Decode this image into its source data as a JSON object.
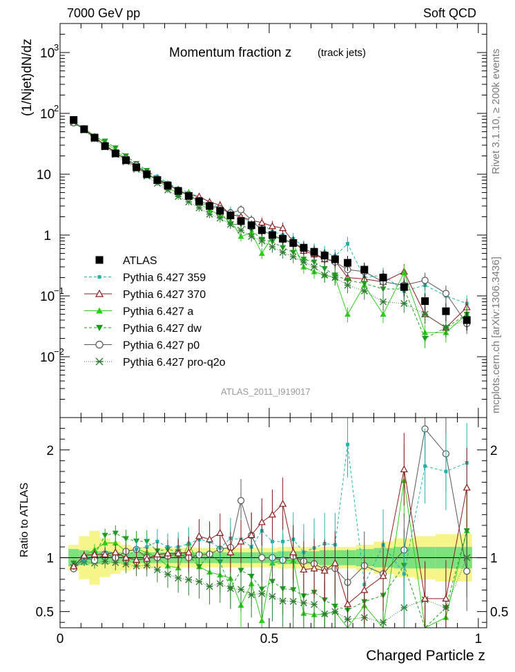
{
  "header": {
    "left": "7000 GeV pp",
    "right": "Soft QCD"
  },
  "side_labels": {
    "rivet": "Rivet 3.1.10, ≥ 200k events",
    "mcplots": "mcplots.cern.ch [arXiv:1306.3436]"
  },
  "plot_title": {
    "main": "Momentum fraction z",
    "sub": "(track jets)"
  },
  "analysis_id": "ATLAS_2011_I919017",
  "colors": {
    "atlas": "#000000",
    "p359": "#20b2aa",
    "p370": "#8b1a1a",
    "pa": "#2ecc1a",
    "pdw": "#1e9e1e",
    "pp0": "#555555",
    "pq2o": "#2e7d32",
    "band_inner": "#7fe07f",
    "band_outer": "#f5f58a"
  },
  "chart_data": [
    {
      "type": "scatter",
      "title": "Momentum fraction z (track jets)",
      "ylabel": "(1/Njet)dN/dz",
      "yscale": "log",
      "ylim": [
        0.001,
        3000
      ],
      "xlim": [
        0,
        1.02
      ],
      "yticks": [
        {
          "v": 1000,
          "label": "10",
          "exp": "3"
        },
        {
          "v": 100,
          "label": "10",
          "exp": "2"
        },
        {
          "v": 10,
          "label": "10",
          "exp": ""
        },
        {
          "v": 1,
          "label": "1",
          "exp": ""
        },
        {
          "v": 0.1,
          "label": "10",
          "exp": "−1"
        },
        {
          "v": 0.01,
          "label": "10",
          "exp": "−2"
        }
      ],
      "legend_position": "middle-left",
      "x": [
        0.0325,
        0.0575,
        0.0825,
        0.1075,
        0.1325,
        0.1575,
        0.1825,
        0.2075,
        0.2325,
        0.2575,
        0.2825,
        0.3075,
        0.3325,
        0.3575,
        0.3825,
        0.4075,
        0.4325,
        0.4575,
        0.4825,
        0.5075,
        0.5325,
        0.5575,
        0.5825,
        0.6075,
        0.6325,
        0.6575,
        0.6875,
        0.7275,
        0.7725,
        0.8225,
        0.8725,
        0.9225,
        0.9725
      ],
      "series": [
        {
          "name": "ATLAS",
          "key": "atlas",
          "marker": "square",
          "values": [
            78,
            55,
            40,
            29,
            22,
            17,
            13,
            10,
            8.0,
            6.5,
            5.3,
            4.4,
            3.6,
            3.0,
            2.5,
            2.1,
            1.7,
            1.45,
            1.2,
            1.0,
            0.87,
            0.74,
            0.62,
            0.53,
            0.46,
            0.4,
            0.35,
            0.27,
            0.2,
            0.14,
            0.082,
            0.056,
            0.04
          ]
        },
        {
          "name": "Pythia 6.427 359",
          "key": "p359",
          "marker": "small-square",
          "dash": "4,3",
          "values": [
            72,
            54,
            41,
            30,
            23,
            17,
            14,
            11,
            9.2,
            7.2,
            5.8,
            5.0,
            4.2,
            3.5,
            2.7,
            2.5,
            2.0,
            1.6,
            1.5,
            1.15,
            1.0,
            0.87,
            0.65,
            0.58,
            0.52,
            0.45,
            0.72,
            0.2,
            0.22,
            0.12,
            0.15,
            0.1,
            0.075
          ]
        },
        {
          "name": "Pythia 6.427 370",
          "key": "p370",
          "marker": "open-triangle",
          "values": [
            72,
            56,
            41,
            30,
            23,
            17,
            13,
            10,
            8.3,
            6.8,
            5.5,
            4.6,
            4.3,
            3.5,
            3.1,
            2.2,
            2.0,
            1.75,
            1.6,
            1.4,
            1.3,
            0.78,
            0.55,
            0.48,
            0.4,
            0.38,
            0.2,
            0.19,
            0.17,
            0.25,
            0.05,
            0.03,
            0.065
          ]
        },
        {
          "name": "Pythia 6.427 a",
          "key": "pa",
          "marker": "triangle",
          "values": [
            72,
            56,
            43,
            33,
            25,
            18,
            14,
            10.5,
            8.0,
            6.0,
            4.8,
            5.0,
            3.3,
            2.6,
            2.1,
            1.7,
            0.95,
            1.1,
            0.5,
            0.95,
            0.85,
            0.72,
            0.3,
            0.25,
            0.22,
            0.2,
            0.05,
            0.15,
            0.05,
            0.24,
            0.025,
            0.025,
            0.05
          ]
        },
        {
          "name": "Pythia 6.427 dw",
          "key": "pdw",
          "marker": "down-triangle",
          "dash": "4,3",
          "values": [
            74,
            53,
            41,
            35,
            27,
            20,
            15,
            11.5,
            8.5,
            7.0,
            5.6,
            4.5,
            3.3,
            3.1,
            2.4,
            1.5,
            1.5,
            1.2,
            0.85,
            0.78,
            0.62,
            0.52,
            0.4,
            0.36,
            0.28,
            0.22,
            0.18,
            0.16,
            0.13,
            0.13,
            0.02,
            0.03,
            0.05
          ]
        },
        {
          "name": "Pythia 6.427 p0",
          "key": "pp0",
          "marker": "open-circle",
          "values": [
            70,
            55,
            39,
            30,
            22,
            18,
            14,
            10,
            8.0,
            6.6,
            5.5,
            4.4,
            3.7,
            3.1,
            2.7,
            2.3,
            2.6,
            1.75,
            1.2,
            1.0,
            0.85,
            0.75,
            0.6,
            0.5,
            0.41,
            0.36,
            0.27,
            0.25,
            0.17,
            0.15,
            0.18,
            0.11,
            0.035
          ]
        },
        {
          "name": "Pythia 6.427 pro-q2o",
          "key": "pq2o",
          "marker": "star",
          "dash": "1,2",
          "values": [
            71,
            53,
            38,
            28,
            21,
            16,
            12,
            9.3,
            7.1,
            5.5,
            4.3,
            3.5,
            2.8,
            2.2,
            1.9,
            1.5,
            1.2,
            0.95,
            0.8,
            0.64,
            0.52,
            0.44,
            0.36,
            0.3,
            0.22,
            0.2,
            0.15,
            0.12,
            0.08,
            0.075,
            0.05,
            0.03,
            0.04
          ]
        }
      ]
    },
    {
      "type": "line",
      "ylabel": "Ratio to ATLAS",
      "xlabel": "Charged Particle z",
      "ylim": [
        0.35,
        2.3
      ],
      "xlim": [
        0,
        1.02
      ],
      "yticks": [
        "0.5",
        "1",
        "2"
      ],
      "xticks": [
        "0",
        "0.5",
        "1"
      ],
      "band_inner_halfwidth": [
        0.08,
        0.07,
        0.06,
        0.06,
        0.05,
        0.05,
        0.05,
        0.05,
        0.05,
        0.05,
        0.05,
        0.05,
        0.05,
        0.05,
        0.05,
        0.05,
        0.05,
        0.05,
        0.05,
        0.05,
        0.06,
        0.06,
        0.06,
        0.06,
        0.07,
        0.07,
        0.07,
        0.08,
        0.09,
        0.1,
        0.1,
        0.1,
        0.1
      ],
      "band_outer_halfwidth": [
        0.12,
        0.2,
        0.25,
        0.18,
        0.15,
        0.12,
        0.1,
        0.1,
        0.09,
        0.09,
        0.09,
        0.09,
        0.09,
        0.09,
        0.09,
        0.09,
        0.09,
        0.09,
        0.09,
        0.09,
        0.1,
        0.1,
        0.1,
        0.1,
        0.1,
        0.1,
        0.1,
        0.12,
        0.15,
        0.18,
        0.2,
        0.22,
        0.22
      ],
      "series_ratio": {
        "p359": [
          0.92,
          0.98,
          1.02,
          1.05,
          1.05,
          1.0,
          1.08,
          1.1,
          1.15,
          1.1,
          1.1,
          1.13,
          1.17,
          1.15,
          1.09,
          1.18,
          1.17,
          1.1,
          1.25,
          1.15,
          1.15,
          1.17,
          1.05,
          1.09,
          1.13,
          1.12,
          2.05,
          0.75,
          1.12,
          0.85,
          1.85,
          1.8,
          1.88
        ],
        "p370": [
          0.92,
          1.02,
          1.03,
          1.03,
          1.05,
          1.0,
          0.98,
          0.99,
          1.03,
          1.04,
          1.04,
          1.05,
          1.2,
          1.17,
          1.23,
          1.05,
          1.15,
          1.21,
          1.33,
          1.4,
          1.5,
          1.05,
          0.89,
          0.9,
          0.88,
          0.95,
          0.57,
          0.7,
          0.83,
          1.82,
          0.62,
          0.62,
          1.65
        ]
      }
    }
  ]
}
